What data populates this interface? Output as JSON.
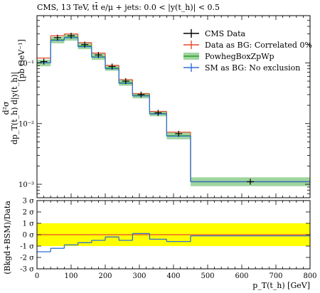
{
  "header": {
    "title": "CMS, 13 TeV, tt̄ e/μ + jets: 0.0 < |y(t_h)| < 0.5"
  },
  "main_panel": {
    "ylabel_lines": [
      "d²σ",
      "dp_T(t_h) d|y(t_h)|",
      "[pb GeV⁻¹]"
    ],
    "y_tick_labels": [
      "10⁻³",
      "10⁻²",
      "10⁻¹"
    ]
  },
  "ratio_panel": {
    "ylabel": "(Bkgd+BSM)/Data",
    "y_tick_labels": [
      "-3 σ",
      "-2 σ",
      "-1 σ",
      "0 σ",
      "1 σ",
      "2 σ",
      "3 σ"
    ],
    "x_tick_labels": [
      "0",
      "100",
      "200",
      "300",
      "400",
      "500",
      "600",
      "700",
      "800"
    ],
    "xlabel": "p_T(t_h) [GeV]"
  },
  "legend": {
    "items": [
      {
        "label": "CMS Data",
        "color": "#000000",
        "style": "point"
      },
      {
        "label": "Data as BG: Correlated 0%",
        "color": "#e8492c",
        "style": "line"
      },
      {
        "label": "PowhegBoxZpWp",
        "color": "#2a9d2a",
        "style": "band"
      },
      {
        "label": "SM as BG: No exclusion",
        "color": "#2e6fd6",
        "style": "line"
      }
    ]
  },
  "colors": {
    "data": "#000000",
    "red": "#e8492c",
    "green": "#2a9d2a",
    "green_band": "#9fd59f",
    "blue": "#2e6fd6",
    "yellow_band": "#ffff00"
  },
  "chart_data": {
    "type": "line",
    "x_scale": "linear",
    "y_scale": "log",
    "xlim": [
      0,
      800
    ],
    "ylim": [
      0.0006,
      0.6
    ],
    "ratio_ylim": [
      -3,
      3
    ],
    "bin_edges": [
      0,
      40,
      80,
      120,
      160,
      200,
      240,
      280,
      330,
      380,
      450,
      800
    ],
    "series": [
      {
        "name": "CMS Data",
        "values": [
          0.105,
          0.26,
          0.28,
          0.2,
          0.135,
          0.087,
          0.05,
          0.03,
          0.015,
          0.0068,
          0.0011
        ]
      },
      {
        "name": "Data as BG: Correlated 0%",
        "values": [
          0.12,
          0.28,
          0.3,
          0.215,
          0.145,
          0.091,
          0.053,
          0.031,
          0.0158,
          0.0072,
          0.0011
        ]
      },
      {
        "name": "PowhegBoxZpWp",
        "values": [
          0.1,
          0.24,
          0.265,
          0.19,
          0.126,
          0.082,
          0.047,
          0.029,
          0.0146,
          0.0063,
          0.0011
        ],
        "band_lo": [
          0.088,
          0.21,
          0.232,
          0.168,
          0.112,
          0.074,
          0.042,
          0.026,
          0.0132,
          0.0055,
          0.00093
        ],
        "band_hi": [
          0.113,
          0.27,
          0.298,
          0.213,
          0.142,
          0.091,
          0.053,
          0.032,
          0.0161,
          0.0071,
          0.0013
        ]
      },
      {
        "name": "SM as BG: No exclusion",
        "values": [
          0.1,
          0.235,
          0.26,
          0.185,
          0.124,
          0.08,
          0.046,
          0.0285,
          0.0144,
          0.0062,
          0.0011
        ]
      }
    ],
    "ratio_series": [
      {
        "name": "Data as BG: Correlated 0%",
        "values": [
          0,
          0,
          0,
          0,
          0,
          0,
          0,
          0,
          0,
          0,
          0
        ]
      },
      {
        "name": "SM as BG: No exclusion",
        "values": [
          -1.5,
          -1.2,
          -0.9,
          -0.7,
          -0.5,
          -0.2,
          -0.5,
          0.1,
          -0.4,
          -0.6,
          -0.1
        ]
      }
    ],
    "ratio_band_sigma": 1
  }
}
